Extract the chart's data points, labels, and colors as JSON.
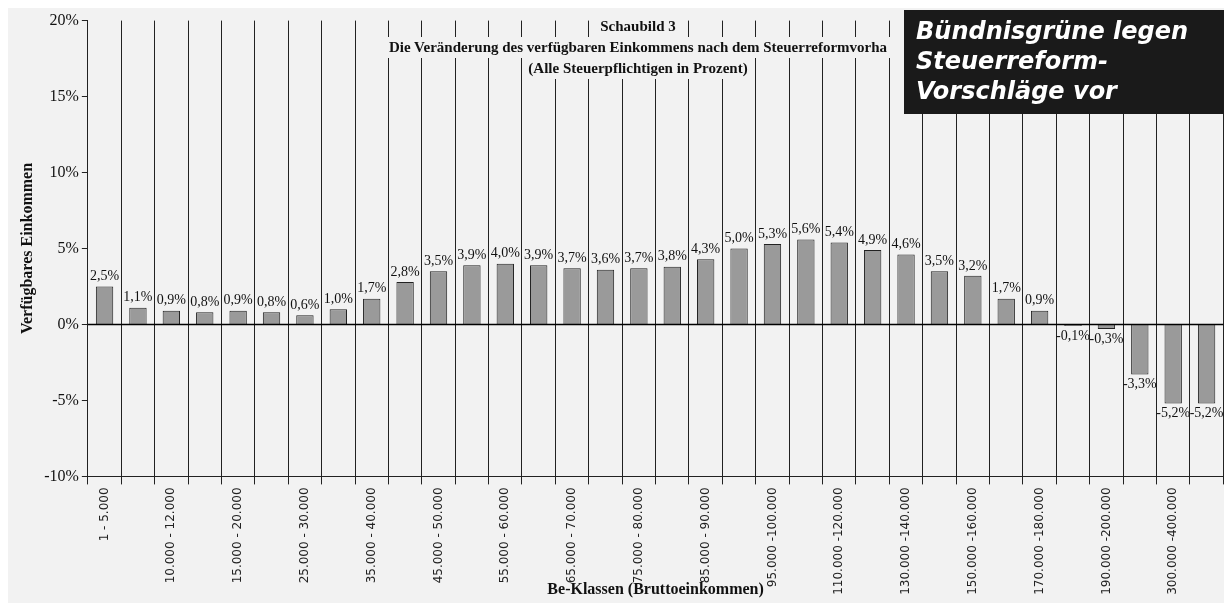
{
  "chart_data": {
    "type": "bar",
    "title": "Schaubild 3",
    "subtitle": "Die Veränderung des verfügbaren Einkommens nach dem Steuerreformvorha\n(Alle Steuerpflichtigen in Prozent)",
    "xlabel": "Be-Klassen (Bruttoeinkommen)",
    "ylabel": "Verfügbares Einkommen",
    "annotations": [
      "Bündnisgrüne legen Steuerreform-Vorschläge vor"
    ],
    "categories": [
      "1 - 5.000",
      null,
      "10.000 - 12.000",
      null,
      "15.000 - 20.000",
      null,
      "25.000 - 30.000",
      null,
      "35.000 - 40.000",
      null,
      "45.000 - 50.000",
      null,
      "55.000 - 60.000",
      null,
      "65.000 - 70.000",
      null,
      "75.000 - 80.000",
      null,
      "85.000 - 90.000",
      null,
      "95.000 -100.000",
      null,
      "110.000 -120.000",
      null,
      "130.000 -140.000",
      null,
      "150.000 -160.000",
      null,
      "170.000 -180.000",
      null,
      "190.000 -200.000",
      null,
      "300.000 -400.000",
      null
    ],
    "values": [
      2.5,
      1.1,
      0.9,
      0.8,
      0.9,
      0.8,
      0.6,
      1.0,
      1.7,
      2.8,
      3.5,
      3.9,
      4.0,
      3.9,
      3.7,
      3.6,
      3.7,
      3.8,
      4.3,
      5.0,
      5.3,
      5.6,
      5.4,
      4.9,
      4.6,
      3.5,
      3.2,
      1.7,
      0.9,
      -0.1,
      -0.3,
      -3.3,
      -5.2,
      -5.2
    ],
    "value_labels": [
      "2,5%",
      "1,1%",
      "0,9%",
      "0,8%",
      "0,9%",
      "0,8%",
      "0,6%",
      "1,0%",
      "1,7%",
      "2,8%",
      "3,5%",
      "3,9%",
      "4,0%",
      "3,9%",
      "3,7%",
      "3,6%",
      "3,7%",
      "3,8%",
      "4,3%",
      "5,0%",
      "5,3%",
      "5,6%",
      "5,4%",
      "4,9%",
      "4,6%",
      "3,5%",
      "3,2%",
      "1,7%",
      "0,9%",
      "-0,1%",
      "-0,3%",
      "-3,3%",
      "-5,2%",
      "-5,2%"
    ],
    "color": "#9a9a9a",
    "ylim": [
      -10,
      20
    ],
    "yticks": [
      {
        "value": -10,
        "label": "-10%"
      },
      {
        "value": -5,
        "label": "-5%"
      },
      {
        "value": 0,
        "label": "0%"
      },
      {
        "value": 5,
        "label": "5%"
      },
      {
        "value": 10,
        "label": "10%"
      },
      {
        "value": 15,
        "label": "15%"
      },
      {
        "value": 20,
        "label": "20%"
      }
    ],
    "ref_lines": [
      {
        "axis": "y",
        "value": 0
      }
    ],
    "grid": "x",
    "legend": false
  }
}
